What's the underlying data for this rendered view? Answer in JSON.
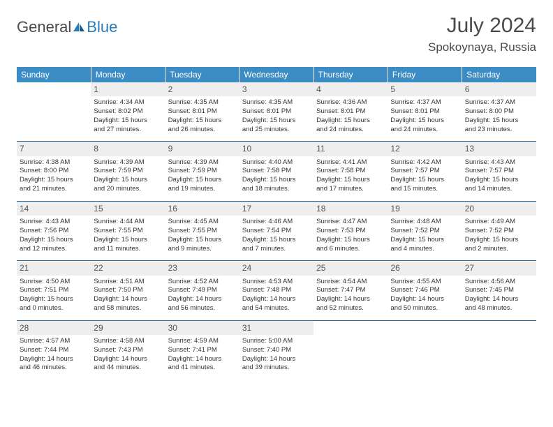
{
  "logo": {
    "word1": "General",
    "word2": "Blue"
  },
  "title": "July 2024",
  "location": "Spokoynaya, Russia",
  "colors": {
    "header_bg": "#3b8bc4",
    "header_text": "#ffffff",
    "daynum_bg": "#eeeeee",
    "row_border": "#2a6a9c",
    "logo_blue": "#2a7cb8",
    "text": "#333333"
  },
  "day_headers": [
    "Sunday",
    "Monday",
    "Tuesday",
    "Wednesday",
    "Thursday",
    "Friday",
    "Saturday"
  ],
  "weeks": [
    [
      {
        "num": "",
        "lines": []
      },
      {
        "num": "1",
        "lines": [
          "Sunrise: 4:34 AM",
          "Sunset: 8:02 PM",
          "Daylight: 15 hours",
          "and 27 minutes."
        ]
      },
      {
        "num": "2",
        "lines": [
          "Sunrise: 4:35 AM",
          "Sunset: 8:01 PM",
          "Daylight: 15 hours",
          "and 26 minutes."
        ]
      },
      {
        "num": "3",
        "lines": [
          "Sunrise: 4:35 AM",
          "Sunset: 8:01 PM",
          "Daylight: 15 hours",
          "and 25 minutes."
        ]
      },
      {
        "num": "4",
        "lines": [
          "Sunrise: 4:36 AM",
          "Sunset: 8:01 PM",
          "Daylight: 15 hours",
          "and 24 minutes."
        ]
      },
      {
        "num": "5",
        "lines": [
          "Sunrise: 4:37 AM",
          "Sunset: 8:01 PM",
          "Daylight: 15 hours",
          "and 24 minutes."
        ]
      },
      {
        "num": "6",
        "lines": [
          "Sunrise: 4:37 AM",
          "Sunset: 8:00 PM",
          "Daylight: 15 hours",
          "and 23 minutes."
        ]
      }
    ],
    [
      {
        "num": "7",
        "lines": [
          "Sunrise: 4:38 AM",
          "Sunset: 8:00 PM",
          "Daylight: 15 hours",
          "and 21 minutes."
        ]
      },
      {
        "num": "8",
        "lines": [
          "Sunrise: 4:39 AM",
          "Sunset: 7:59 PM",
          "Daylight: 15 hours",
          "and 20 minutes."
        ]
      },
      {
        "num": "9",
        "lines": [
          "Sunrise: 4:39 AM",
          "Sunset: 7:59 PM",
          "Daylight: 15 hours",
          "and 19 minutes."
        ]
      },
      {
        "num": "10",
        "lines": [
          "Sunrise: 4:40 AM",
          "Sunset: 7:58 PM",
          "Daylight: 15 hours",
          "and 18 minutes."
        ]
      },
      {
        "num": "11",
        "lines": [
          "Sunrise: 4:41 AM",
          "Sunset: 7:58 PM",
          "Daylight: 15 hours",
          "and 17 minutes."
        ]
      },
      {
        "num": "12",
        "lines": [
          "Sunrise: 4:42 AM",
          "Sunset: 7:57 PM",
          "Daylight: 15 hours",
          "and 15 minutes."
        ]
      },
      {
        "num": "13",
        "lines": [
          "Sunrise: 4:43 AM",
          "Sunset: 7:57 PM",
          "Daylight: 15 hours",
          "and 14 minutes."
        ]
      }
    ],
    [
      {
        "num": "14",
        "lines": [
          "Sunrise: 4:43 AM",
          "Sunset: 7:56 PM",
          "Daylight: 15 hours",
          "and 12 minutes."
        ]
      },
      {
        "num": "15",
        "lines": [
          "Sunrise: 4:44 AM",
          "Sunset: 7:55 PM",
          "Daylight: 15 hours",
          "and 11 minutes."
        ]
      },
      {
        "num": "16",
        "lines": [
          "Sunrise: 4:45 AM",
          "Sunset: 7:55 PM",
          "Daylight: 15 hours",
          "and 9 minutes."
        ]
      },
      {
        "num": "17",
        "lines": [
          "Sunrise: 4:46 AM",
          "Sunset: 7:54 PM",
          "Daylight: 15 hours",
          "and 7 minutes."
        ]
      },
      {
        "num": "18",
        "lines": [
          "Sunrise: 4:47 AM",
          "Sunset: 7:53 PM",
          "Daylight: 15 hours",
          "and 6 minutes."
        ]
      },
      {
        "num": "19",
        "lines": [
          "Sunrise: 4:48 AM",
          "Sunset: 7:52 PM",
          "Daylight: 15 hours",
          "and 4 minutes."
        ]
      },
      {
        "num": "20",
        "lines": [
          "Sunrise: 4:49 AM",
          "Sunset: 7:52 PM",
          "Daylight: 15 hours",
          "and 2 minutes."
        ]
      }
    ],
    [
      {
        "num": "21",
        "lines": [
          "Sunrise: 4:50 AM",
          "Sunset: 7:51 PM",
          "Daylight: 15 hours",
          "and 0 minutes."
        ]
      },
      {
        "num": "22",
        "lines": [
          "Sunrise: 4:51 AM",
          "Sunset: 7:50 PM",
          "Daylight: 14 hours",
          "and 58 minutes."
        ]
      },
      {
        "num": "23",
        "lines": [
          "Sunrise: 4:52 AM",
          "Sunset: 7:49 PM",
          "Daylight: 14 hours",
          "and 56 minutes."
        ]
      },
      {
        "num": "24",
        "lines": [
          "Sunrise: 4:53 AM",
          "Sunset: 7:48 PM",
          "Daylight: 14 hours",
          "and 54 minutes."
        ]
      },
      {
        "num": "25",
        "lines": [
          "Sunrise: 4:54 AM",
          "Sunset: 7:47 PM",
          "Daylight: 14 hours",
          "and 52 minutes."
        ]
      },
      {
        "num": "26",
        "lines": [
          "Sunrise: 4:55 AM",
          "Sunset: 7:46 PM",
          "Daylight: 14 hours",
          "and 50 minutes."
        ]
      },
      {
        "num": "27",
        "lines": [
          "Sunrise: 4:56 AM",
          "Sunset: 7:45 PM",
          "Daylight: 14 hours",
          "and 48 minutes."
        ]
      }
    ],
    [
      {
        "num": "28",
        "lines": [
          "Sunrise: 4:57 AM",
          "Sunset: 7:44 PM",
          "Daylight: 14 hours",
          "and 46 minutes."
        ]
      },
      {
        "num": "29",
        "lines": [
          "Sunrise: 4:58 AM",
          "Sunset: 7:43 PM",
          "Daylight: 14 hours",
          "and 44 minutes."
        ]
      },
      {
        "num": "30",
        "lines": [
          "Sunrise: 4:59 AM",
          "Sunset: 7:41 PM",
          "Daylight: 14 hours",
          "and 41 minutes."
        ]
      },
      {
        "num": "31",
        "lines": [
          "Sunrise: 5:00 AM",
          "Sunset: 7:40 PM",
          "Daylight: 14 hours",
          "and 39 minutes."
        ]
      },
      {
        "num": "",
        "lines": []
      },
      {
        "num": "",
        "lines": []
      },
      {
        "num": "",
        "lines": []
      }
    ]
  ]
}
